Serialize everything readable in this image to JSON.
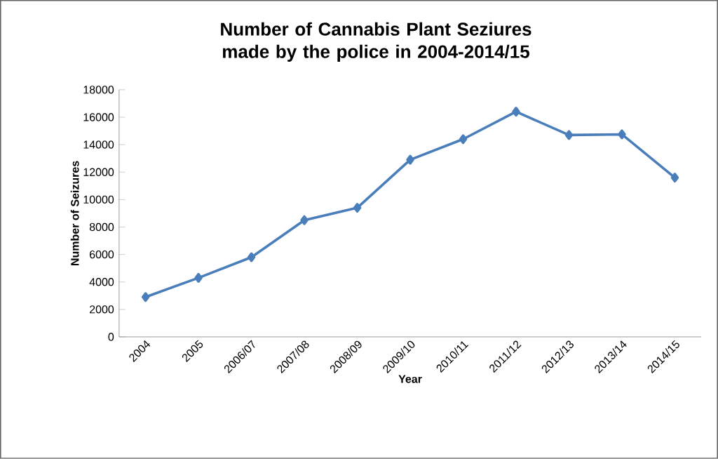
{
  "chart_data": {
    "type": "line",
    "title": "Number of Cannabis Plant Seziures made by the police in 2004-2014/15",
    "xlabel": "Year",
    "ylabel": "Number of Seizures",
    "categories": [
      "2004",
      "2005",
      "2006/07",
      "2007/08",
      "2008/09",
      "2009/10",
      "2010/11",
      "2011/12",
      "2012/13",
      "2013/14",
      "2014/15"
    ],
    "series": [
      {
        "color": "#4a7ebb",
        "values": [
          2900,
          4300,
          5800,
          8500,
          9400,
          12900,
          14400,
          16400,
          14700,
          14750,
          11600
        ]
      }
    ],
    "ylim": [
      0,
      18000
    ],
    "yticks": [
      0,
      2000,
      4000,
      6000,
      8000,
      10000,
      12000,
      14000,
      16000,
      18000
    ],
    "marker": "diamond",
    "line_style": "solid"
  }
}
